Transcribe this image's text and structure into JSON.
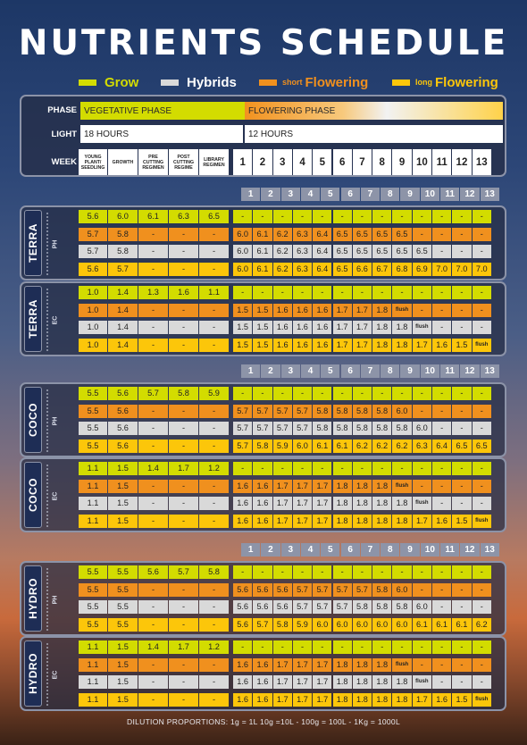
{
  "title": "NUTRIENTS  SCHEDULE",
  "legend": [
    {
      "prefix": "",
      "label": "Grow",
      "color": "#d3dc00",
      "label_color": "#d3dc00"
    },
    {
      "prefix": "",
      "label": "Hybrids",
      "color": "#d9d9d9",
      "label_color": "#ffffff"
    },
    {
      "prefix": "short",
      "label": "Flowering",
      "color": "#f0901e",
      "label_color": "#f0901e"
    },
    {
      "prefix": "long",
      "label": "Flowering",
      "color": "#fcc60a",
      "label_color": "#fcc60a"
    }
  ],
  "header": {
    "phase_label": "PHASE",
    "vegetative_phase": "VEGETATIVE PHASE",
    "flowering_phase": "FLOWERING PHASE",
    "light_label": "LIGHT",
    "light_veg": "18 HOURS",
    "light_flw": "12 HOURS",
    "week_label": "WEEK",
    "week_stages": [
      "YOUNG PLANT/ SEEDLING",
      "GROWTH",
      "PRE CUTTING REGIMEN",
      "POST CUTTING REGIME",
      "LIBRARY REGIMEN"
    ],
    "weeks": [
      "1",
      "2",
      "3",
      "4",
      "5",
      "6",
      "7",
      "8",
      "9",
      "10",
      "11",
      "12",
      "13"
    ]
  },
  "week_header": [
    "1",
    "2",
    "3",
    "4",
    "5",
    "6",
    "7",
    "8",
    "9",
    "10",
    "11",
    "12",
    "13"
  ],
  "blocks": [
    {
      "name": "TERRA",
      "unit": "PH",
      "rows": [
        {
          "type": "grow",
          "values": [
            "5.6",
            "6.0",
            "6.1",
            "6.3",
            "6.5",
            "-",
            "-",
            "-",
            "-",
            "-",
            "-",
            "-",
            "-",
            "-",
            "-",
            "-",
            "-",
            "-"
          ]
        },
        {
          "type": "short",
          "values": [
            "5.7",
            "5.8",
            "-",
            "-",
            "-",
            "6.0",
            "6.1",
            "6.2",
            "6.3",
            "6.4",
            "6.5",
            "6.5",
            "6.5",
            "6.5",
            "-",
            "-",
            "-",
            "-"
          ]
        },
        {
          "type": "hybrid",
          "values": [
            "5.7",
            "5.8",
            "-",
            "-",
            "-",
            "6.0",
            "6.1",
            "6.2",
            "6.3",
            "6.4",
            "6.5",
            "6.5",
            "6.5",
            "6.5",
            "6.5",
            "-",
            "-",
            "-"
          ]
        },
        {
          "type": "long",
          "values": [
            "5.6",
            "5.7",
            "-",
            "-",
            "-",
            "6.0",
            "6.1",
            "6.2",
            "6.3",
            "6.4",
            "6.5",
            "6.6",
            "6.7",
            "6.8",
            "6.9",
            "7.0",
            "7.0",
            "7.0"
          ]
        }
      ]
    },
    {
      "name": "TERRA",
      "unit": "EC",
      "rows": [
        {
          "type": "grow",
          "values": [
            "1.0",
            "1.4",
            "1.3",
            "1.6",
            "1.1",
            "-",
            "-",
            "-",
            "-",
            "-",
            "-",
            "-",
            "-",
            "-",
            "-",
            "-",
            "-",
            "-"
          ]
        },
        {
          "type": "short",
          "values": [
            "1.0",
            "1.4",
            "-",
            "-",
            "-",
            "1.5",
            "1.5",
            "1.6",
            "1.6",
            "1.6",
            "1.7",
            "1.7",
            "1.8",
            "flush",
            "-",
            "-",
            "-",
            "-"
          ]
        },
        {
          "type": "hybrid",
          "values": [
            "1.0",
            "1.4",
            "-",
            "-",
            "-",
            "1.5",
            "1.5",
            "1.6",
            "1.6",
            "1.6",
            "1.7",
            "1.7",
            "1.8",
            "1.8",
            "flush",
            "-",
            "-",
            "-"
          ]
        },
        {
          "type": "long",
          "values": [
            "1.0",
            "1.4",
            "-",
            "-",
            "-",
            "1.5",
            "1.5",
            "1.6",
            "1.6",
            "1.6",
            "1.7",
            "1.7",
            "1.8",
            "1.8",
            "1.7",
            "1.6",
            "1.5",
            "flush"
          ]
        }
      ]
    },
    {
      "name": "COCO",
      "unit": "PH",
      "rows": [
        {
          "type": "grow",
          "values": [
            "5.5",
            "5.6",
            "5.7",
            "5.8",
            "5.9",
            "-",
            "-",
            "-",
            "-",
            "-",
            "-",
            "-",
            "-",
            "-",
            "-",
            "-",
            "-",
            "-"
          ]
        },
        {
          "type": "short",
          "values": [
            "5.5",
            "5.6",
            "-",
            "-",
            "-",
            "5.7",
            "5.7",
            "5.7",
            "5.7",
            "5.8",
            "5.8",
            "5.8",
            "5.8",
            "6.0",
            "-",
            "-",
            "-",
            "-"
          ]
        },
        {
          "type": "hybrid",
          "values": [
            "5.5",
            "5.6",
            "-",
            "-",
            "-",
            "5.7",
            "5.7",
            "5.7",
            "5.7",
            "5.8",
            "5.8",
            "5.8",
            "5.8",
            "5.8",
            "6.0",
            "-",
            "-",
            "-"
          ]
        },
        {
          "type": "long",
          "values": [
            "5.5",
            "5.6",
            "-",
            "-",
            "-",
            "5.7",
            "5.8",
            "5.9",
            "6.0",
            "6.1",
            "6.1",
            "6.2",
            "6.2",
            "6.2",
            "6.3",
            "6.4",
            "6.5",
            "6.5"
          ]
        }
      ]
    },
    {
      "name": "COCO",
      "unit": "EC",
      "rows": [
        {
          "type": "grow",
          "values": [
            "1.1",
            "1.5",
            "1.4",
            "1.7",
            "1.2",
            "-",
            "-",
            "-",
            "-",
            "-",
            "-",
            "-",
            "-",
            "-",
            "-",
            "-",
            "-",
            "-"
          ]
        },
        {
          "type": "short",
          "values": [
            "1.1",
            "1.5",
            "-",
            "-",
            "-",
            "1.6",
            "1.6",
            "1.7",
            "1.7",
            "1.7",
            "1.8",
            "1.8",
            "1.8",
            "flush",
            "-",
            "-",
            "-",
            "-"
          ]
        },
        {
          "type": "hybrid",
          "values": [
            "1.1",
            "1.5",
            "-",
            "-",
            "-",
            "1.6",
            "1.6",
            "1.7",
            "1.7",
            "1.7",
            "1.8",
            "1.8",
            "1.8",
            "1.8",
            "flush",
            "-",
            "-",
            "-"
          ]
        },
        {
          "type": "long",
          "values": [
            "1.1",
            "1.5",
            "-",
            "-",
            "-",
            "1.6",
            "1.6",
            "1.7",
            "1.7",
            "1.7",
            "1.8",
            "1.8",
            "1.8",
            "1.8",
            "1.7",
            "1.6",
            "1.5",
            "flush"
          ]
        }
      ]
    },
    {
      "name": "HYDRO",
      "unit": "PH",
      "rows": [
        {
          "type": "grow",
          "values": [
            "5.5",
            "5.5",
            "5.6",
            "5.7",
            "5.8",
            "-",
            "-",
            "-",
            "-",
            "-",
            "-",
            "-",
            "-",
            "-",
            "-",
            "-",
            "-",
            "-"
          ]
        },
        {
          "type": "short",
          "values": [
            "5.5",
            "5.5",
            "-",
            "-",
            "-",
            "5.6",
            "5.6",
            "5.6",
            "5.7",
            "5.7",
            "5.7",
            "5.7",
            "5.8",
            "6.0",
            "-",
            "-",
            "-",
            "-"
          ]
        },
        {
          "type": "hybrid",
          "values": [
            "5.5",
            "5.5",
            "-",
            "-",
            "-",
            "5.6",
            "5.6",
            "5.6",
            "5.7",
            "5.7",
            "5.7",
            "5.8",
            "5.8",
            "5.8",
            "6.0",
            "-",
            "-",
            "-"
          ]
        },
        {
          "type": "long",
          "values": [
            "5.5",
            "5.5",
            "-",
            "-",
            "-",
            "5.6",
            "5.7",
            "5.8",
            "5.9",
            "6.0",
            "6.0",
            "6.0",
            "6.0",
            "6.0",
            "6.1",
            "6.1",
            "6.1",
            "6.2"
          ]
        }
      ]
    },
    {
      "name": "HYDRO",
      "unit": "EC",
      "rows": [
        {
          "type": "grow",
          "values": [
            "1.1",
            "1.5",
            "1.4",
            "1.7",
            "1.2",
            "-",
            "-",
            "-",
            "-",
            "-",
            "-",
            "-",
            "-",
            "-",
            "-",
            "-",
            "-",
            "-"
          ]
        },
        {
          "type": "short",
          "values": [
            "1.1",
            "1.5",
            "-",
            "-",
            "-",
            "1.6",
            "1.6",
            "1.7",
            "1.7",
            "1.7",
            "1.8",
            "1.8",
            "1.8",
            "flush",
            "-",
            "-",
            "-",
            "-"
          ]
        },
        {
          "type": "hybrid",
          "values": [
            "1.1",
            "1.5",
            "-",
            "-",
            "-",
            "1.6",
            "1.6",
            "1.7",
            "1.7",
            "1.7",
            "1.8",
            "1.8",
            "1.8",
            "1.8",
            "flush",
            "-",
            "-",
            "-"
          ]
        },
        {
          "type": "long",
          "values": [
            "1.1",
            "1.5",
            "-",
            "-",
            "-",
            "1.6",
            "1.6",
            "1.7",
            "1.7",
            "1.7",
            "1.8",
            "1.8",
            "1.8",
            "1.8",
            "1.7",
            "1.6",
            "1.5",
            "flush"
          ]
        }
      ]
    }
  ],
  "footer": "DILUTION PROPORTIONS: 1g = 1L  10g =10L  - 100g = 100L  - 1Kg = 1000L"
}
